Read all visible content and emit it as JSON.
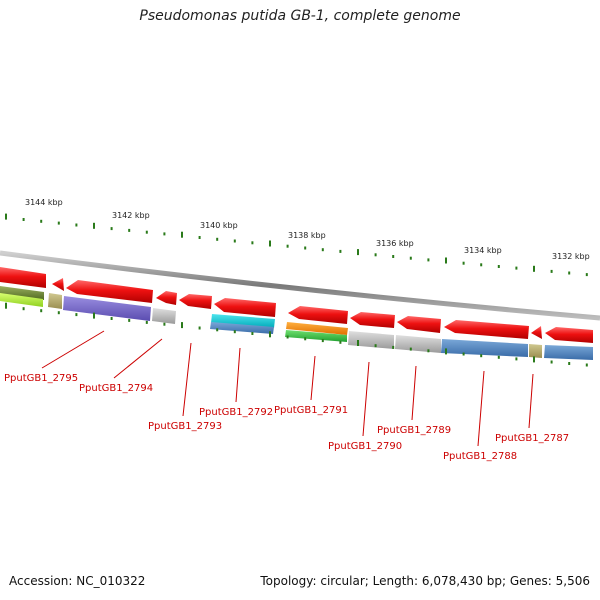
{
  "title": "Pseudomonas putida GB-1, complete genome",
  "accession": "Accession: NC_010322",
  "summary": "Topology: circular; Length: 6,078,430 bp; Genes: 5,506",
  "scale_labels": [
    "3144 kbp",
    "3142 kbp",
    "3140 kbp",
    "3138 kbp",
    "3136 kbp",
    "3134 kbp",
    "3132 kbp"
  ],
  "gene_labels": [
    "PputGB1_2795",
    "PputGB1_2794",
    "PputGB1_2793",
    "PputGB1_2792",
    "PputGB1_2791",
    "PputGB1_2790",
    "PputGB1_2789",
    "PputGB1_2788",
    "PputGB1_2787"
  ],
  "colors": {
    "backbone": "#8a8a8a",
    "forward_gene": "#ee1111",
    "label": "#cc0000",
    "tick": "#2a7a1a"
  }
}
